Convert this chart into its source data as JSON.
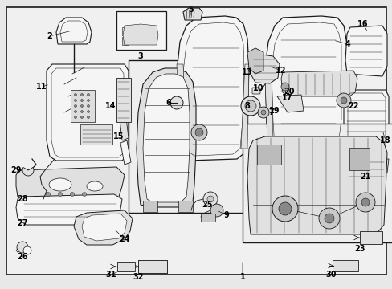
{
  "background_color": "#e8e8e8",
  "border_color": "#000000",
  "fig_width": 4.89,
  "fig_height": 3.6,
  "dpi": 100,
  "line_color": "#1a1a1a",
  "fill_light": "#f5f5f5",
  "fill_mid": "#e0e0e0",
  "fill_dark": "#c8c8c8",
  "font_size": 7.0
}
